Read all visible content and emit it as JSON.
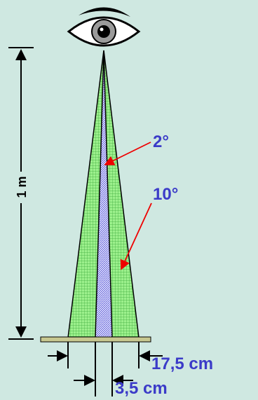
{
  "labels": {
    "distance": "1 m",
    "small_angle": "2°",
    "large_angle": "10°",
    "large_width": "17,5 cm",
    "small_width": "3,5 cm"
  }
}
